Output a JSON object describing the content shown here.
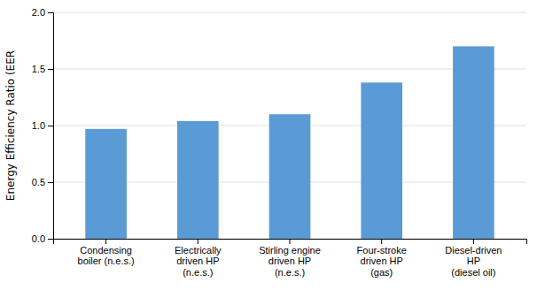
{
  "chart_data": {
    "type": "bar",
    "categories": [
      "Condensing\nboiler (n.e.s.)",
      "Electrically\ndriven HP\n(n.e.s.)",
      "Stirling engine\ndriven HP\n(n.e.s.)",
      "Four-stroke\ndriven HP\n(gas)",
      "Diesel-driven\nHP\n(diesel oil)"
    ],
    "values": [
      0.97,
      1.04,
      1.1,
      1.38,
      1.7
    ],
    "color": "#5B9BD5",
    "y_label": "Energy Efficiency Ratio (EER",
    "ylim": [
      0.0,
      2.0
    ],
    "yticks": [
      {
        "value": 0.0,
        "label": "0.0"
      },
      0.5,
      {
        "value": 1.0,
        "label": "1.0"
      },
      1.5,
      {
        "value": 2.0,
        "label": "2.0"
      }
    ],
    "grid": true
  }
}
